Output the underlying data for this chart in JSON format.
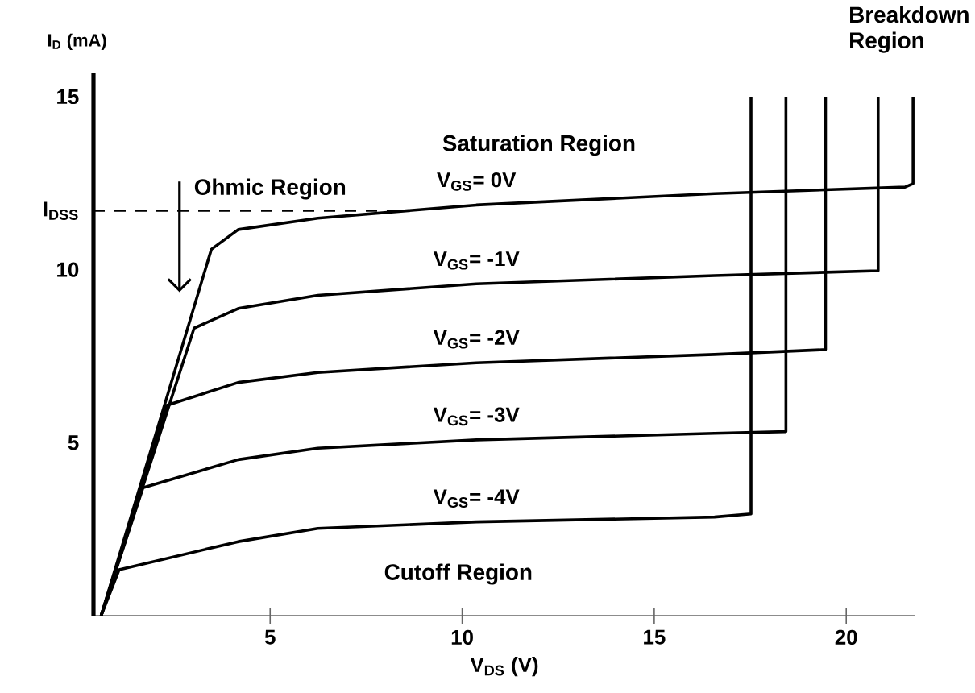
{
  "chart_data": {
    "type": "line",
    "xlabel": "V$_{DS}$ (V)",
    "ylabel": "I$_{D}$ (mA)",
    "xlim": [
      0.4,
      21.8
    ],
    "ylim": [
      0,
      15.7
    ],
    "xticks": [
      5,
      10,
      15,
      20
    ],
    "yticks": [
      5,
      10,
      {
        "value": 11.7,
        "label": "I$_{DSS}$"
      },
      15
    ],
    "marker": "none",
    "line_style": "solid",
    "grid": false,
    "series": [
      {
        "name": "V$_{GS}$= 0V",
        "color": "#000000",
        "x": [
          0.6,
          3.47,
          4.17,
          6.24,
          10.37,
          16.57,
          21.53,
          21.74,
          21.74
        ],
        "values": [
          0,
          10.59,
          11.16,
          11.49,
          11.87,
          12.2,
          12.39,
          12.49,
          15.0
        ]
      },
      {
        "name": "V$_{GS}$= -1V",
        "color": "#000000",
        "x": [
          0.6,
          3.02,
          4.17,
          6.24,
          10.37,
          16.57,
          20.83,
          20.83
        ],
        "values": [
          0,
          8.31,
          8.88,
          9.26,
          9.59,
          9.83,
          9.97,
          15.0
        ]
      },
      {
        "name": "V$_{GS}$= -2V",
        "color": "#000000",
        "x": [
          0.6,
          2.31,
          4.17,
          6.24,
          10.37,
          16.57,
          19.46,
          19.46
        ],
        "values": [
          0,
          6.08,
          6.74,
          7.03,
          7.31,
          7.55,
          7.69,
          15.0
        ]
      },
      {
        "name": "V$_{GS}$= -3V",
        "color": "#000000",
        "x": [
          0.6,
          1.69,
          4.17,
          6.24,
          10.37,
          16.57,
          18.43,
          18.43
        ],
        "values": [
          0,
          3.7,
          4.51,
          4.84,
          5.08,
          5.27,
          5.32,
          15.0
        ]
      },
      {
        "name": "V$_{GS}$= -4V",
        "color": "#000000",
        "x": [
          0.6,
          1.07,
          4.17,
          6.24,
          10.37,
          16.57,
          17.52,
          17.52
        ],
        "values": [
          0,
          1.33,
          2.14,
          2.52,
          2.71,
          2.85,
          2.94,
          15.0
        ]
      },
      {
        "color": "#000000",
        "line_style": "dashed",
        "x": [
          0.4,
          8.5
        ],
        "values": [
          11.7,
          11.7
        ]
      }
    ],
    "annotations": [
      "Saturation Region",
      "Ohmic Region",
      "Breakdown Region",
      "Cutoff Region"
    ]
  }
}
